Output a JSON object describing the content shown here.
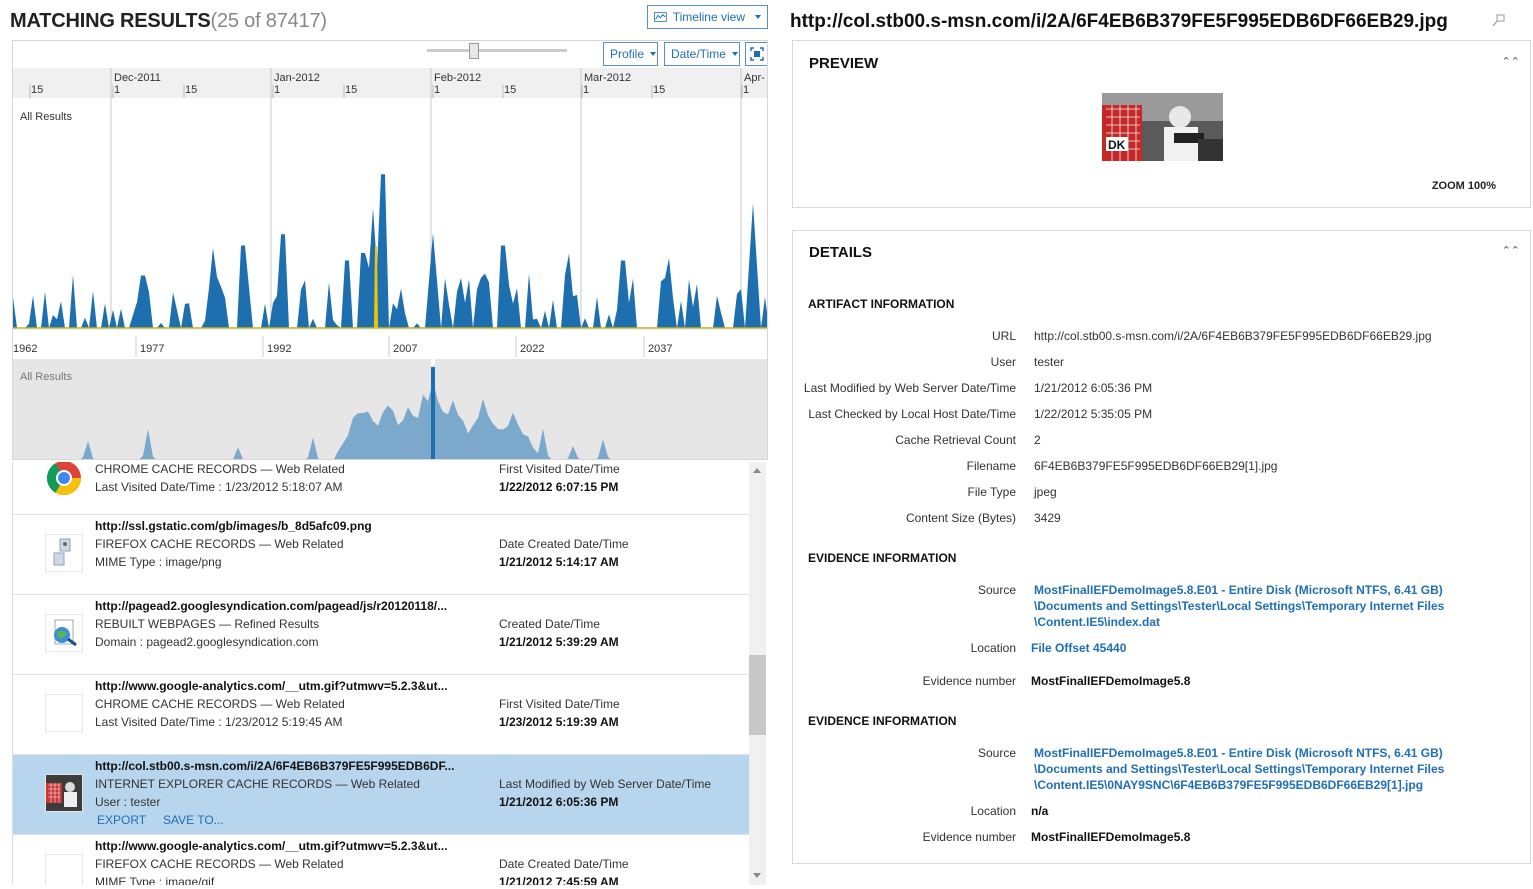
{
  "header": {
    "title": "MATCHING RESULTS",
    "count": "(25 of 87417)",
    "timeline_view_label": "Timeline view",
    "profile_label": "Profile",
    "datetime_label": "Date/Time"
  },
  "timeline": {
    "top_months": [
      {
        "label": "Dec-2011"
      },
      {
        "label": "Jan-2012"
      },
      {
        "label": "Feb-2012"
      },
      {
        "label": "Mar-2012"
      },
      {
        "label": "Apr-"
      }
    ],
    "day_ticks": [
      "15",
      "1",
      "15",
      "1",
      "15",
      "1",
      "15",
      "1",
      "15",
      "1"
    ],
    "series_label": "All Results",
    "years": [
      "1962",
      "1977",
      "1992",
      "2007",
      "2022",
      "2037"
    ],
    "overview_label": "All Results",
    "colors": {
      "series": "#1e6fb0",
      "highlight": "#f2c400",
      "overview": "#7aa9cc"
    }
  },
  "results": [
    {
      "icon": "chrome-icon",
      "title": "",
      "line1": "CHROME CACHE RECORDS  —  Web Related",
      "line2": "Last Visited Date/Time :  1/23/2012 5:18:07 AM",
      "date_label": "First Visited Date/Time",
      "date_value": "1/22/2012 6:07:15 PM",
      "selected": false
    },
    {
      "icon": "image-file-icon",
      "title": "http://ssl.gstatic.com/gb/images/b_8d5afc09.png",
      "line1": "FIREFOX CACHE RECORDS  —  Web Related",
      "line2": "MIME Type :  image/png",
      "date_label": "Date Created Date/Time",
      "date_value": "1/21/2012 5:14:17 AM",
      "selected": false
    },
    {
      "icon": "webpage-globe-icon",
      "title": "http://pagead2.googlesyndication.com/pagead/js/r20120118/...",
      "line1": "REBUILT WEBPAGES  —  Refined Results",
      "line2": "Domain :  pagead2.googlesyndication.com",
      "date_label": "Created Date/Time",
      "date_value": "1/21/2012 5:39:29 AM",
      "selected": false
    },
    {
      "icon": "blank-file-icon",
      "title": "http://www.google-analytics.com/__utm.gif?utmwv=5.2.3&ut...",
      "line1": "CHROME CACHE RECORDS  —  Web Related",
      "line2": "Last Visited Date/Time :  1/23/2012 5:19:45 AM",
      "date_label": "First Visited Date/Time",
      "date_value": "1/23/2012 5:19:39 AM",
      "selected": false
    },
    {
      "icon": "hockey-thumbnail-icon",
      "title": "http://col.stb00.s-msn.com/i/2A/6F4EB6B379FE5F995EDB6DF...",
      "line1": "INTERNET EXPLORER CACHE RECORDS  —  Web Related",
      "line2": "User :  tester",
      "date_label": "Last Modified by Web Server Date/Time",
      "date_value": "1/21/2012 6:05:36 PM",
      "selected": true,
      "export_label": "EXPORT",
      "save_label": "SAVE TO..."
    },
    {
      "icon": "blank-file-icon",
      "title": "http://www.google-analytics.com/__utm.gif?utmwv=5.2.3&ut...",
      "line1": "FIREFOX CACHE RECORDS  —  Web Related",
      "line2": "MIME Type :  image/gif",
      "date_label": "Date Created Date/Time",
      "date_value": "1/21/2012 7:45:59 AM",
      "selected": false
    }
  ],
  "detail": {
    "url_title": "http://col.stb00.s-msn.com/i/2A/6F4EB6B379FE5F995EDB6DF66EB29.jpg",
    "preview_heading": "PREVIEW",
    "zoom": "ZOOM 100%",
    "details_heading": "DETAILS",
    "artifact_heading": "ARTIFACT INFORMATION",
    "artifact": [
      {
        "k": "URL",
        "v": "http://col.stb00.s-msn.com/i/2A/6F4EB6B379FE5F995EDB6DF66EB29.jpg"
      },
      {
        "k": "User",
        "v": "tester"
      },
      {
        "k": "Last Modified by Web Server Date/Time",
        "v": "1/21/2012 6:05:36 PM"
      },
      {
        "k": "Last Checked by Local Host Date/Time",
        "v": "1/22/2012 5:35:05 PM"
      },
      {
        "k": "Cache Retrieval Count",
        "v": "2"
      },
      {
        "k": "Filename",
        "v": "6F4EB6B379FE5F995EDB6DF66EB29[1].jpg"
      },
      {
        "k": "File Type",
        "v": "jpeg"
      },
      {
        "k": "Content Size (Bytes)",
        "v": "3429"
      }
    ],
    "evidence1": {
      "heading": "EVIDENCE INFORMATION",
      "source_label": "Source",
      "source_lines": [
        "MostFinalIEFDemoImage5.8.E01 - Entire Disk (Microsoft NTFS, 6.41 GB)",
        "\\Documents and Settings\\Tester\\Local Settings\\Temporary Internet Files",
        "\\Content.IE5\\index.dat"
      ],
      "location_label": "Location",
      "location": "File Offset 45440",
      "number_label": "Evidence number",
      "number": "MostFinalIEFDemoImage5.8"
    },
    "evidence2": {
      "heading": "EVIDENCE INFORMATION",
      "source_label": "Source",
      "source_lines": [
        "MostFinalIEFDemoImage5.8.E01 - Entire Disk (Microsoft NTFS, 6.41 GB)",
        "\\Documents and Settings\\Tester\\Local Settings\\Temporary Internet Files",
        "\\Content.IE5\\0NAY9SNC\\6F4EB6B379FE5F995EDB6DF66EB29[1].jpg"
      ],
      "location_label": "Location",
      "location": "n/a",
      "number_label": "Evidence number",
      "number": "MostFinalIEFDemoImage5.8"
    }
  }
}
